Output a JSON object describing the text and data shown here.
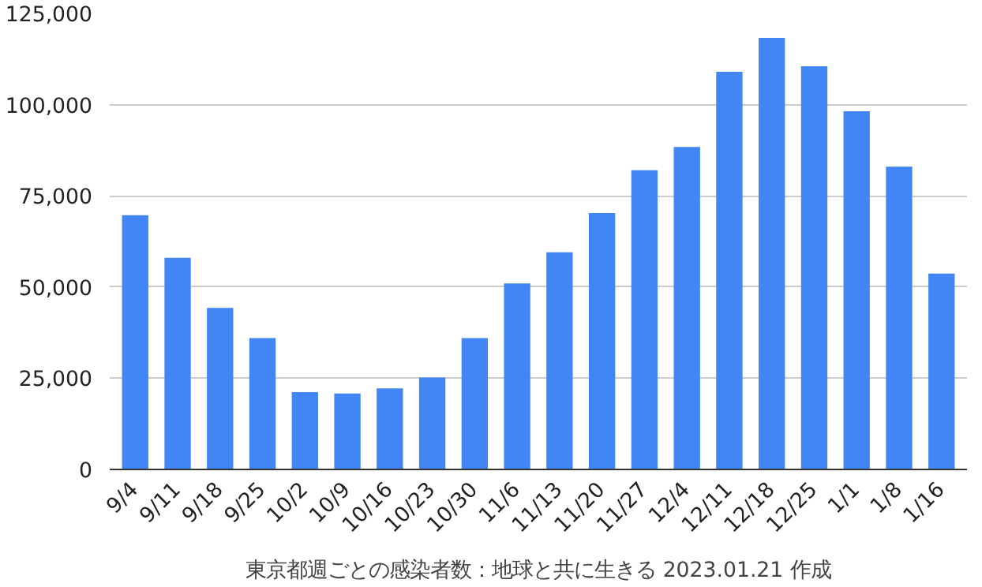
{
  "chart_data": {
    "type": "bar",
    "xlabel": "東京都週ごとの感染者数：地球と共に生きる 2023.01.21 作成",
    "categories": [
      "9/4",
      "9/11",
      "9/18",
      "9/25",
      "10/2",
      "10/9",
      "10/16",
      "10/23",
      "10/30",
      "11/6",
      "11/13",
      "11/20",
      "11/27",
      "12/4",
      "12/11",
      "12/18",
      "12/25",
      "1/1",
      "1/8",
      "1/16"
    ],
    "values": [
      69700,
      58000,
      44300,
      36000,
      21200,
      20800,
      22200,
      25200,
      36000,
      51000,
      59500,
      70300,
      82000,
      88400,
      109000,
      118300,
      110500,
      98200,
      83000,
      53700
    ],
    "color": "#4285f4",
    "ylim": [
      0,
      125000
    ],
    "yticks": [
      0,
      {
        "value": 25000,
        "label": "25,000"
      },
      {
        "value": 50000,
        "label": "50,000"
      },
      {
        "value": 75000,
        "label": "75,000"
      },
      {
        "value": 100000,
        "label": "100,000"
      },
      {
        "value": 125000,
        "label": "125,000"
      }
    ],
    "grid": "y"
  }
}
